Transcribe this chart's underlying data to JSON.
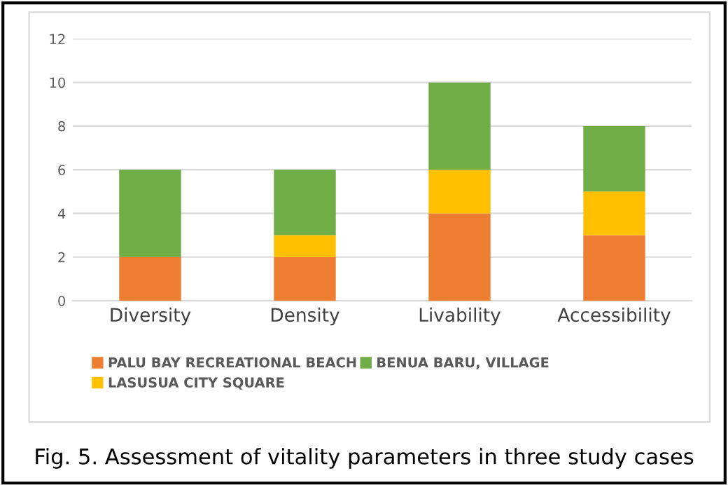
{
  "chart_data": {
    "type": "bar",
    "stacked": true,
    "categories": [
      "Diversity",
      "Density",
      "Livability",
      "Accessibility"
    ],
    "series": [
      {
        "name": "PALU BAY RECREATIONAL BEACH",
        "color": "#ed7d31",
        "values": [
          2,
          2,
          4,
          3
        ]
      },
      {
        "name": "LASUSUA CITY SQUARE",
        "color": "#ffc000",
        "values": [
          0,
          1,
          2,
          2
        ]
      },
      {
        "name": "BENUA BARU, VILLAGE",
        "color": "#70ad47",
        "values": [
          4,
          3,
          4,
          3
        ]
      }
    ],
    "ylim": [
      0,
      12
    ],
    "yticks": [
      0,
      2,
      4,
      6,
      8,
      10,
      12
    ],
    "grid": "y",
    "legend": "bottom",
    "annotations": [
      "Fig. 5. Assessment of vitality parameters in three study cases"
    ]
  }
}
